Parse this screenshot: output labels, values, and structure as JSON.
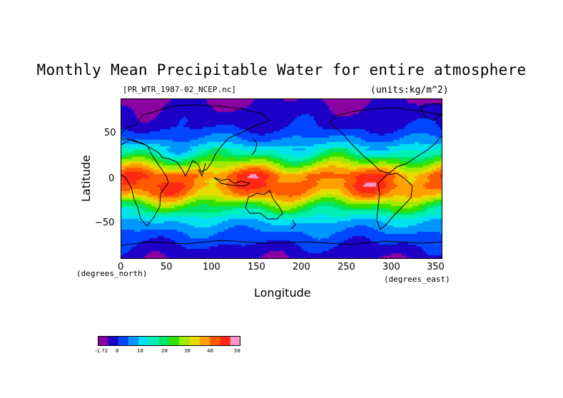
{
  "title": "Monthly Mean Precipitable Water for entire atmosphere",
  "file_label": "[PR_WTR_1987-02_NCEP.nc]",
  "units_label": "(units:kg/m^2)",
  "x_axis": {
    "title": "Longitude",
    "units": "(degrees_east)",
    "ticks": [
      "0",
      "50",
      "100",
      "150",
      "200",
      "250",
      "300",
      "350"
    ],
    "range": [
      0,
      357.5
    ]
  },
  "y_axis": {
    "title": "Latitude",
    "units": "(degrees_north)",
    "ticks": [
      "50",
      "0",
      "−50"
    ],
    "range": [
      -90,
      90
    ]
  },
  "colorbar": {
    "labels": [
      "-1.72",
      "8",
      "18",
      "28",
      "38",
      "48",
      "58"
    ],
    "colors": [
      "#8b00a0",
      "#1c00c8",
      "#0046ff",
      "#0096ff",
      "#00e1f0",
      "#00f0b4",
      "#00e664",
      "#32e100",
      "#a0eb00",
      "#e6dc00",
      "#ffa000",
      "#ff5a00",
      "#ff2814",
      "#ff96c8"
    ]
  },
  "chart_data": {
    "type": "heatmap",
    "title": "Monthly Mean Precipitable Water for entire atmosphere",
    "variable": "PR_WTR",
    "units": "kg/m^2",
    "xlabel": "Longitude",
    "ylabel": "Latitude",
    "xlim": [
      0,
      357.5
    ],
    "ylim": [
      -90,
      90
    ],
    "value_range": [
      -1.72,
      58
    ],
    "zonal_profile_lat": [
      90,
      75,
      60,
      45,
      30,
      15,
      5,
      0,
      -5,
      -15,
      -30,
      -45,
      -60,
      -75,
      -90
    ],
    "zonal_profile_value": [
      2,
      4,
      6,
      12,
      22,
      38,
      48,
      46,
      48,
      44,
      28,
      16,
      10,
      6,
      3
    ]
  }
}
